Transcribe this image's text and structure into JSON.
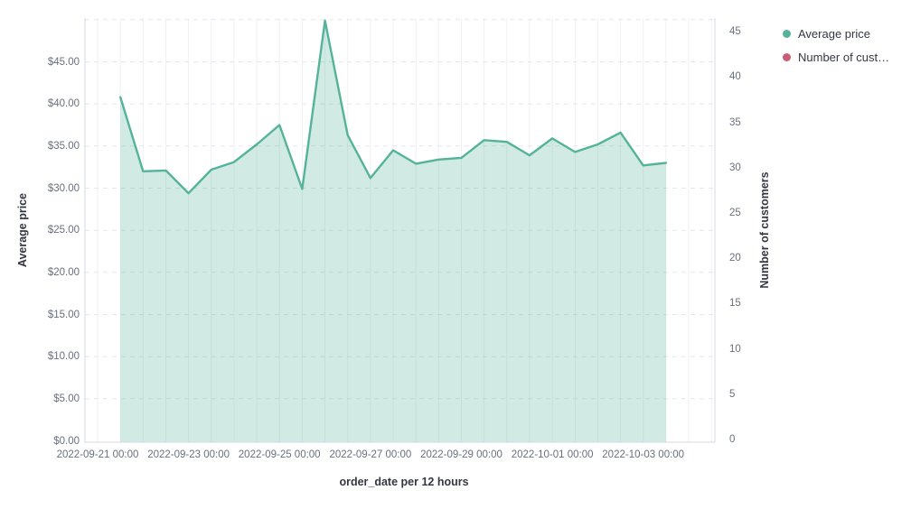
{
  "legend": {
    "items": [
      {
        "label": "Average price",
        "color": "#54b399"
      },
      {
        "label": "Number of cust…",
        "color": "#ca5d78"
      }
    ]
  },
  "chart_data": {
    "type": "area",
    "title": "",
    "xlabel": "order_date per 12 hours",
    "x_axis": {
      "interval": "12 hours",
      "tick_labels": [
        "2022-09-21 00:00",
        "2022-09-23 00:00",
        "2022-09-25 00:00",
        "2022-09-27 00:00",
        "2022-09-29 00:00",
        "2022-10-01 00:00",
        "2022-10-03 00:00"
      ]
    },
    "left_axis": {
      "label": "Average price",
      "tick_labels": [
        "$45.00",
        "$40.00",
        "$35.00",
        "$30.00",
        "$25.00",
        "$20.00",
        "$15.00",
        "$10.00",
        "$5.00",
        "$0.00"
      ],
      "tick_values": [
        45,
        40,
        35,
        30,
        25,
        20,
        15,
        10,
        5,
        0
      ],
      "min": 0,
      "max": 50.2
    },
    "right_axis": {
      "label": "Number of customers",
      "tick_labels": [
        "45",
        "40",
        "35",
        "30",
        "25",
        "20",
        "15",
        "10",
        "5",
        "0"
      ],
      "tick_values": [
        45,
        40,
        35,
        30,
        25,
        20,
        15,
        10,
        5,
        0
      ],
      "min": 0,
      "max": 46.5
    },
    "grid": {
      "horizontal_style": "dashed",
      "horizontal_color": "#e3e7ee",
      "vertical_style": "solid",
      "vertical_color": "#eff1f5",
      "axis_line_color": "#d4dae3"
    },
    "series": [
      {
        "name": "Average price",
        "axis": "left",
        "color": "#54b399",
        "fill_opacity": 0.27,
        "x": [
          "2022-09-21 12:00",
          "2022-09-22 00:00",
          "2022-09-22 12:00",
          "2022-09-23 00:00",
          "2022-09-23 12:00",
          "2022-09-24 00:00",
          "2022-09-24 12:00",
          "2022-09-25 00:00",
          "2022-09-25 12:00",
          "2022-09-26 00:00",
          "2022-09-26 12:00",
          "2022-09-27 00:00",
          "2022-09-27 12:00",
          "2022-09-28 00:00",
          "2022-09-28 12:00",
          "2022-09-29 00:00",
          "2022-09-29 12:00",
          "2022-09-30 00:00",
          "2022-09-30 12:00",
          "2022-10-01 00:00",
          "2022-10-01 12:00",
          "2022-10-02 00:00",
          "2022-10-02 12:00",
          "2022-10-03 00:00",
          "2022-10-03 12:00"
        ],
        "values": [
          40.8,
          32.0,
          32.1,
          29.4,
          32.2,
          33.1,
          35.2,
          37.5,
          29.9,
          49.9,
          36.3,
          31.2,
          34.5,
          32.9,
          33.4,
          33.6,
          35.7,
          35.5,
          33.9,
          35.9,
          34.3,
          35.2,
          36.6,
          32.7,
          33.0
        ]
      },
      {
        "name": "Number of customers",
        "axis": "right",
        "color": "#ca5d78",
        "values": []
      }
    ]
  }
}
